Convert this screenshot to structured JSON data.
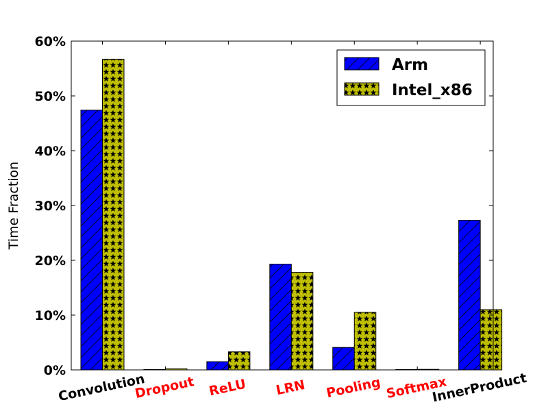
{
  "chart_data": {
    "type": "bar",
    "ylabel": "Time Fraction",
    "ylim": [
      0,
      60
    ],
    "yticks": [
      0,
      10,
      20,
      30,
      40,
      50,
      60
    ],
    "ytick_labels": [
      "0%",
      "10%",
      "20%",
      "30%",
      "40%",
      "50%",
      "60%"
    ],
    "categories": [
      "Convolution",
      "Dropout",
      "ReLU",
      "LRN",
      "Pooling",
      "Softmax",
      "InnerProduct"
    ],
    "category_colors": [
      "#000000",
      "#ff0000",
      "#ff0000",
      "#ff0000",
      "#ff0000",
      "#ff0000",
      "#000000"
    ],
    "series": [
      {
        "name": "Arm",
        "color": "#0000ff",
        "hatch": "diagonal",
        "values": [
          47.4,
          0.05,
          1.5,
          19.3,
          4.1,
          0.05,
          27.3
        ]
      },
      {
        "name": "Intel_x86",
        "color": "#bfbf00",
        "hatch": "stars",
        "values": [
          56.7,
          0.2,
          3.3,
          17.8,
          10.5,
          0.1,
          11.0
        ]
      }
    ],
    "legend_position": "top-right",
    "grid": false
  }
}
